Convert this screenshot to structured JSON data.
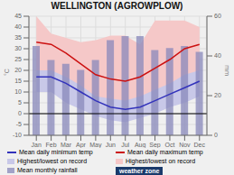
{
  "chart_data": {
    "type": "combo",
    "title": "WELLINGTON (AGROWPLOW)",
    "categories": [
      "Jan",
      "Feb",
      "Mar",
      "Apr",
      "May",
      "Jun",
      "Jul",
      "Aug",
      "Sep",
      "Oct",
      "Nov",
      "Dec"
    ],
    "series": [
      {
        "name": "Mean monthly rainfall",
        "type": "bar",
        "axis": "y2",
        "color": "#8888bb",
        "values": [
          45,
          38,
          36,
          33,
          38,
          48,
          50,
          50,
          43,
          44,
          45,
          42
        ]
      },
      {
        "name": "Highest/lowest on record",
        "type": "band",
        "color": "#c8c8e8",
        "low": [
          10,
          10,
          5,
          2,
          -1,
          -3,
          -4,
          -2,
          0,
          3,
          5,
          8
        ],
        "high": [
          28,
          27,
          25,
          20,
          16,
          12,
          11,
          12,
          16,
          20,
          24,
          26
        ]
      },
      {
        "name": "Highest/lowest on record",
        "type": "band",
        "color": "#f5c8c8",
        "low": [
          20,
          20,
          17,
          13,
          8,
          7,
          6,
          8,
          11,
          14,
          18,
          20
        ],
        "high": [
          45,
          37,
          35,
          33,
          34,
          36,
          36,
          32,
          43,
          43,
          43,
          40
        ]
      },
      {
        "name": "Mean daily minimum temp",
        "type": "line",
        "color": "#3333bb",
        "values": [
          17,
          17,
          14,
          10,
          6,
          3,
          2,
          3,
          6,
          9,
          12,
          15
        ]
      },
      {
        "name": "Mean daily maximum temp",
        "type": "line",
        "color": "#cc1111",
        "values": [
          33,
          32,
          28,
          23,
          18,
          16,
          15,
          17,
          21,
          25,
          30,
          32
        ]
      }
    ],
    "y_label": "°C",
    "y2_label": "mm",
    "ylim": [
      -10,
      45
    ],
    "yticks": [
      -10,
      -5,
      0,
      5,
      10,
      15,
      20,
      25,
      30,
      35,
      40,
      45
    ],
    "y2lim": [
      0,
      60
    ],
    "y2ticks": [
      0,
      20,
      40,
      60
    ],
    "reference_lines": [
      {
        "y": 0,
        "color": "#000000"
      }
    ],
    "annotations": [
      {
        "text": "weather zone"
      }
    ],
    "grid": true,
    "legend": "bottom"
  }
}
